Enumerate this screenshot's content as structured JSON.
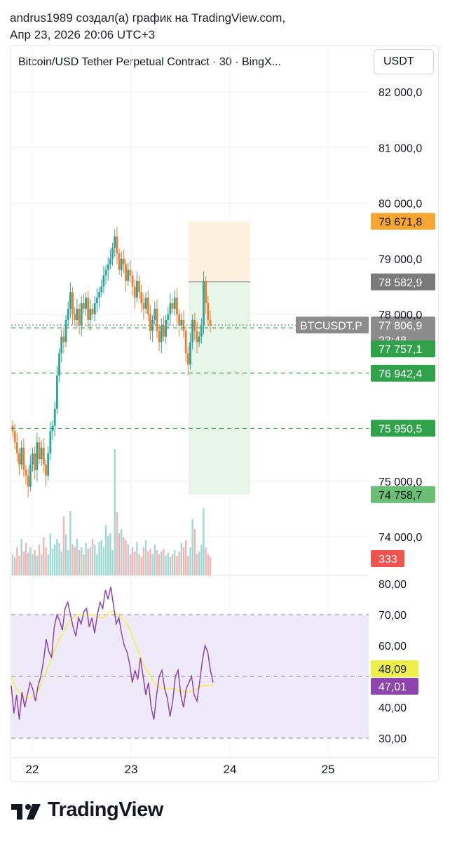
{
  "header": {
    "line1": "andrus1989 создал(а) график на TradingView.com,",
    "line2": "Апр 23, 2026 20:06 UTC+3"
  },
  "chart_title": "Bitcoin/USD Tether Perpetual Contract · 30 · BingX...",
  "currency_button": "USDT",
  "footer": {
    "logo_text": "TradingView"
  },
  "colors": {
    "up": "#26a69a",
    "down": "#ef7c2c",
    "target_zone": "#e8f5e9",
    "stop_zone": "#fff1e0",
    "rsi_line": "#8e44ad",
    "rsi_ma": "#f3f05a",
    "rsi_band": "#efeaf9"
  },
  "chart_data": [
    {
      "type": "candlestick",
      "symbol": "BTCUSDT.P",
      "x_ticks": [
        "22",
        "23",
        "24",
        "25"
      ],
      "y_ticks": [
        "82 000,0",
        "81 000,0",
        "80 000,0",
        "79 000,0",
        "78 000,0",
        "75 000,0",
        "74 000,0"
      ],
      "ylim": [
        73800,
        82500
      ],
      "price_labels": [
        {
          "name": "stop",
          "text": "79 671,8",
          "value": 79671.8,
          "color": "#f7a632"
        },
        {
          "name": "entry",
          "text": "78 582,9",
          "value": 78582.9,
          "color": "#7a7a7a"
        },
        {
          "name": "last",
          "text": "77 806,9",
          "value": 77806.9,
          "color": "#8c8c8c",
          "countdown": "23:48"
        },
        {
          "name": "level1",
          "text": "77 757,1",
          "value": 77757.1,
          "color": "#2fa24a"
        },
        {
          "name": "level2",
          "text": "76 942,4",
          "value": 76942.4,
          "color": "#2fa24a"
        },
        {
          "name": "level3",
          "text": "75 950,5",
          "value": 75950.5,
          "color": "#2fa24a"
        },
        {
          "name": "target",
          "text": "74 758,7",
          "value": 74758.7,
          "color": "#6bbf73"
        }
      ],
      "symbol_label": "BTCUSDT.P",
      "volume_label": "333",
      "candles_close": [
        75900,
        75700,
        75500,
        75300,
        75600,
        75200,
        75100,
        74900,
        75300,
        75500,
        75200,
        75700,
        75400,
        75600,
        75300,
        75100,
        75500,
        75900,
        76000,
        76300,
        76900,
        77300,
        77600,
        77500,
        77900,
        78100,
        78400,
        78000,
        77900,
        78100,
        77800,
        78200,
        78100,
        78300,
        77900,
        78100,
        78000,
        78200,
        78300,
        78400,
        78500,
        78700,
        78800,
        78900,
        79000,
        79200,
        79400,
        79100,
        78800,
        79000,
        78900,
        78600,
        78800,
        78700,
        78500,
        78300,
        78600,
        78400,
        78200,
        78100,
        78300,
        78000,
        77700,
        77900,
        78100,
        77700,
        77500,
        77800,
        77600,
        77900,
        78000,
        78200,
        78100,
        78300,
        78000,
        77800,
        77900,
        77700,
        77300,
        77100,
        77500,
        77900,
        77700,
        77500,
        77600,
        77800,
        78600,
        78200,
        77900,
        77800
      ],
      "volume": [
        30,
        26,
        40,
        28,
        52,
        34,
        46,
        32,
        40,
        30,
        36,
        28,
        44,
        30,
        54,
        40,
        30,
        60,
        38,
        44,
        52,
        46,
        34,
        84,
        58,
        36,
        92,
        44,
        40,
        52,
        36,
        40,
        30,
        46,
        38,
        40,
        52,
        44,
        30,
        48,
        50,
        40,
        72,
        56,
        60,
        36,
        180,
        90,
        60,
        66,
        54,
        50,
        44,
        30,
        40,
        34,
        48,
        30,
        26,
        40,
        50,
        34,
        38,
        30,
        44,
        36,
        30,
        34,
        38,
        28,
        32,
        26,
        30,
        36,
        28,
        34,
        46,
        40,
        50,
        28,
        40,
        80,
        66,
        30,
        34,
        44,
        96,
        40,
        30,
        26
      ]
    },
    {
      "type": "line",
      "name": "RSI",
      "y_ticks": [
        "80,00",
        "70,00",
        "60,00",
        "50,00",
        "40,00",
        "30,00"
      ],
      "ylim": [
        27,
        82
      ],
      "band": [
        30,
        70
      ],
      "midline": 50,
      "rsi_value_text": "48,09",
      "rsi_ma_text": "47,01",
      "rsi": [
        47,
        38,
        44,
        36,
        45,
        40,
        44,
        48,
        46,
        42,
        47,
        50,
        55,
        62,
        58,
        56,
        66,
        70,
        68,
        65,
        72,
        74,
        70,
        66,
        63,
        69,
        67,
        71,
        72,
        66,
        69,
        64,
        70,
        74,
        72,
        78,
        75,
        79,
        73,
        67,
        69,
        64,
        60,
        58,
        54,
        48,
        52,
        49,
        56,
        50,
        44,
        48,
        40,
        36,
        44,
        50,
        52,
        46,
        43,
        37,
        42,
        50,
        52,
        44,
        40,
        46,
        48,
        50,
        44,
        42,
        48,
        55,
        60,
        58,
        52,
        48
      ],
      "rsi_ma": [
        50,
        47,
        45,
        44,
        43,
        43,
        44,
        45,
        47,
        50,
        53,
        56,
        59,
        62,
        64,
        66,
        68,
        69,
        70,
        70,
        70,
        70,
        70,
        70,
        69,
        69,
        70,
        71,
        71,
        70,
        69,
        68,
        66,
        63,
        60,
        57,
        54,
        52,
        50,
        48,
        47,
        46,
        46,
        46,
        46,
        46,
        45,
        45,
        45,
        45,
        46,
        46,
        47,
        47,
        47,
        47
      ]
    }
  ]
}
